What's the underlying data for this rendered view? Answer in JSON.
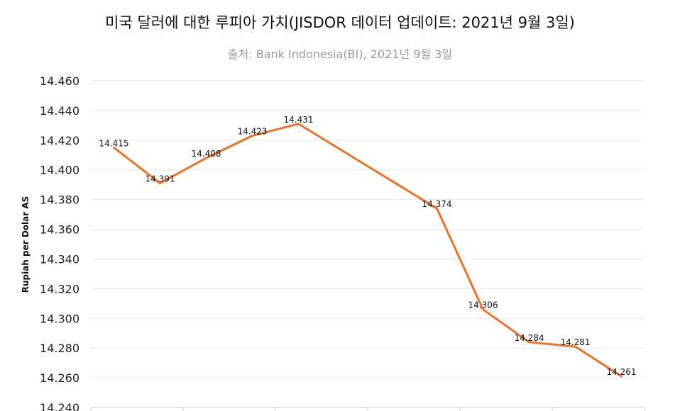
{
  "chart_data": {
    "type": "line",
    "title": "미국 달러에 대한 루피아 가치(JISDOR 데이터 업데이트: 2021년 9월 3일)",
    "subtitle": "출처: Bank Indonesia(BI), 2021년 9월 3일",
    "xlabel": "",
    "ylabel": "Rupiah per Dolar AS",
    "ylim": [
      14.24,
      14.46
    ],
    "xlim": [
      -0.5,
      11.5
    ],
    "yticks": [
      "14.240",
      "14.260",
      "14.280",
      "14.300",
      "14.320",
      "14.340",
      "14.360",
      "14.380",
      "14.400",
      "14.420",
      "14.440",
      "14.460"
    ],
    "grid": true,
    "series": [
      {
        "name": "JISDOR",
        "color": "#f07325",
        "x": [
          0,
          1,
          2,
          3,
          4,
          7,
          8,
          9,
          10,
          11
        ],
        "values": [
          14.415,
          14.391,
          14.408,
          14.423,
          14.431,
          14.374,
          14.306,
          14.284,
          14.281,
          14.261
        ],
        "labels": [
          "14.415",
          "14.391",
          "14.408",
          "14.423",
          "14.431",
          "14.374",
          "14.306",
          "14.284",
          "14.281",
          "14.261"
        ]
      }
    ]
  }
}
